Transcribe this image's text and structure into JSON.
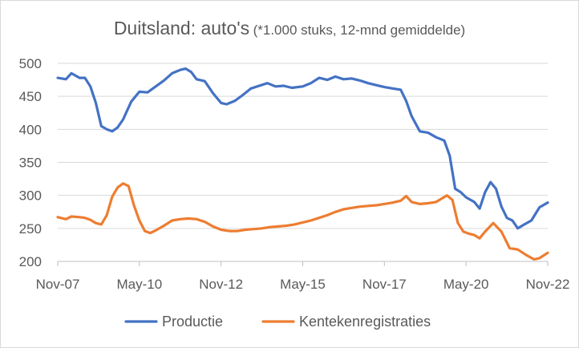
{
  "chart_data": {
    "type": "line",
    "title": "Duitsland: auto's",
    "subtitle": "(*1.000 stuks, 12-mnd gemiddelde)",
    "xlabel": "",
    "ylabel": "",
    "ylim": [
      200,
      500
    ],
    "yticks": [
      200,
      250,
      300,
      350,
      400,
      450,
      500
    ],
    "x_tick_labels": [
      "Nov-07",
      "May-10",
      "Nov-12",
      "May-15",
      "Nov-17",
      "May-20",
      "Nov-22"
    ],
    "grid": "horizontal",
    "legend_position": "bottom",
    "series": [
      {
        "name": "Productie",
        "color": "#4472C4",
        "points": [
          [
            "Nov-07",
            478
          ],
          [
            "Feb-08",
            476
          ],
          [
            "Apr-08",
            485
          ],
          [
            "Jul-08",
            478
          ],
          [
            "Sep-08",
            478
          ],
          [
            "Nov-08",
            465
          ],
          [
            "Jan-09",
            440
          ],
          [
            "Mar-09",
            405
          ],
          [
            "May-09",
            400
          ],
          [
            "Jul-09",
            397
          ],
          [
            "Sep-09",
            403
          ],
          [
            "Nov-09",
            415
          ],
          [
            "Feb-10",
            442
          ],
          [
            "May-10",
            457
          ],
          [
            "Aug-10",
            456
          ],
          [
            "Nov-10",
            465
          ],
          [
            "Feb-11",
            474
          ],
          [
            "May-11",
            485
          ],
          [
            "Aug-11",
            490
          ],
          [
            "Oct-11",
            492
          ],
          [
            "Dec-11",
            487
          ],
          [
            "Feb-12",
            476
          ],
          [
            "May-12",
            473
          ],
          [
            "Aug-12",
            455
          ],
          [
            "Nov-12",
            440
          ],
          [
            "Jan-13",
            438
          ],
          [
            "Apr-13",
            443
          ],
          [
            "Jul-13",
            452
          ],
          [
            "Oct-13",
            462
          ],
          [
            "Jan-14",
            466
          ],
          [
            "Apr-14",
            470
          ],
          [
            "Jul-14",
            465
          ],
          [
            "Oct-14",
            466
          ],
          [
            "Jan-15",
            463
          ],
          [
            "May-15",
            465
          ],
          [
            "Aug-15",
            470
          ],
          [
            "Nov-15",
            478
          ],
          [
            "Feb-16",
            475
          ],
          [
            "May-16",
            480
          ],
          [
            "Aug-16",
            476
          ],
          [
            "Nov-16",
            477
          ],
          [
            "Feb-17",
            474
          ],
          [
            "May-17",
            470
          ],
          [
            "Aug-17",
            467
          ],
          [
            "Nov-17",
            464
          ],
          [
            "Feb-18",
            462
          ],
          [
            "May-18",
            460
          ],
          [
            "Jul-18",
            443
          ],
          [
            "Sep-18",
            420
          ],
          [
            "Dec-18",
            397
          ],
          [
            "Mar-19",
            395
          ],
          [
            "Jun-19",
            388
          ],
          [
            "Sep-19",
            383
          ],
          [
            "Nov-19",
            360
          ],
          [
            "Jan-20",
            310
          ],
          [
            "Mar-20",
            305
          ],
          [
            "May-20",
            297
          ],
          [
            "Aug-20",
            290
          ],
          [
            "Oct-20",
            280
          ],
          [
            "Dec-20",
            305
          ],
          [
            "Feb-21",
            320
          ],
          [
            "Apr-21",
            310
          ],
          [
            "Jun-21",
            283
          ],
          [
            "Aug-21",
            266
          ],
          [
            "Oct-21",
            262
          ],
          [
            "Dec-21",
            250
          ],
          [
            "Feb-22",
            255
          ],
          [
            "May-22",
            262
          ],
          [
            "Aug-22",
            282
          ],
          [
            "Nov-22",
            289
          ]
        ]
      },
      {
        "name": "Kentekenregistraties",
        "color": "#ED7D31",
        "points": [
          [
            "Nov-07",
            267
          ],
          [
            "Feb-08",
            264
          ],
          [
            "Apr-08",
            268
          ],
          [
            "Jul-08",
            267
          ],
          [
            "Sep-08",
            266
          ],
          [
            "Nov-08",
            263
          ],
          [
            "Jan-09",
            258
          ],
          [
            "Mar-09",
            256
          ],
          [
            "May-09",
            270
          ],
          [
            "Jul-09",
            298
          ],
          [
            "Sep-09",
            312
          ],
          [
            "Nov-09",
            318
          ],
          [
            "Jan-10",
            314
          ],
          [
            "Mar-10",
            285
          ],
          [
            "May-10",
            262
          ],
          [
            "Jul-10",
            246
          ],
          [
            "Sep-10",
            243
          ],
          [
            "Nov-10",
            247
          ],
          [
            "Feb-11",
            254
          ],
          [
            "May-11",
            262
          ],
          [
            "Aug-11",
            264
          ],
          [
            "Nov-11",
            265
          ],
          [
            "Feb-12",
            264
          ],
          [
            "May-12",
            260
          ],
          [
            "Aug-12",
            253
          ],
          [
            "Nov-12",
            248
          ],
          [
            "Feb-13",
            246
          ],
          [
            "May-13",
            246
          ],
          [
            "Aug-13",
            248
          ],
          [
            "Nov-13",
            249
          ],
          [
            "Feb-14",
            250
          ],
          [
            "May-14",
            252
          ],
          [
            "Aug-14",
            253
          ],
          [
            "Nov-14",
            254
          ],
          [
            "Feb-15",
            256
          ],
          [
            "May-15",
            259
          ],
          [
            "Aug-15",
            262
          ],
          [
            "Nov-15",
            266
          ],
          [
            "Feb-16",
            270
          ],
          [
            "May-16",
            275
          ],
          [
            "Aug-16",
            279
          ],
          [
            "Nov-16",
            281
          ],
          [
            "Feb-17",
            283
          ],
          [
            "May-17",
            284
          ],
          [
            "Aug-17",
            285
          ],
          [
            "Nov-17",
            287
          ],
          [
            "Feb-18",
            289
          ],
          [
            "May-18",
            292
          ],
          [
            "Jul-18",
            299
          ],
          [
            "Sep-18",
            290
          ],
          [
            "Dec-18",
            287
          ],
          [
            "Mar-19",
            288
          ],
          [
            "Jun-19",
            290
          ],
          [
            "Aug-19",
            295
          ],
          [
            "Oct-19",
            300
          ],
          [
            "Dec-19",
            293
          ],
          [
            "Feb-20",
            258
          ],
          [
            "Apr-20",
            245
          ],
          [
            "Jun-20",
            242
          ],
          [
            "Aug-20",
            240
          ],
          [
            "Oct-20",
            235
          ],
          [
            "Dec-20",
            245
          ],
          [
            "Mar-21",
            258
          ],
          [
            "Jun-21",
            245
          ],
          [
            "Sep-21",
            220
          ],
          [
            "Dec-21",
            218
          ],
          [
            "Mar-22",
            210
          ],
          [
            "Jun-22",
            203
          ],
          [
            "Aug-22",
            205
          ],
          [
            "Nov-22",
            213
          ]
        ]
      }
    ]
  }
}
